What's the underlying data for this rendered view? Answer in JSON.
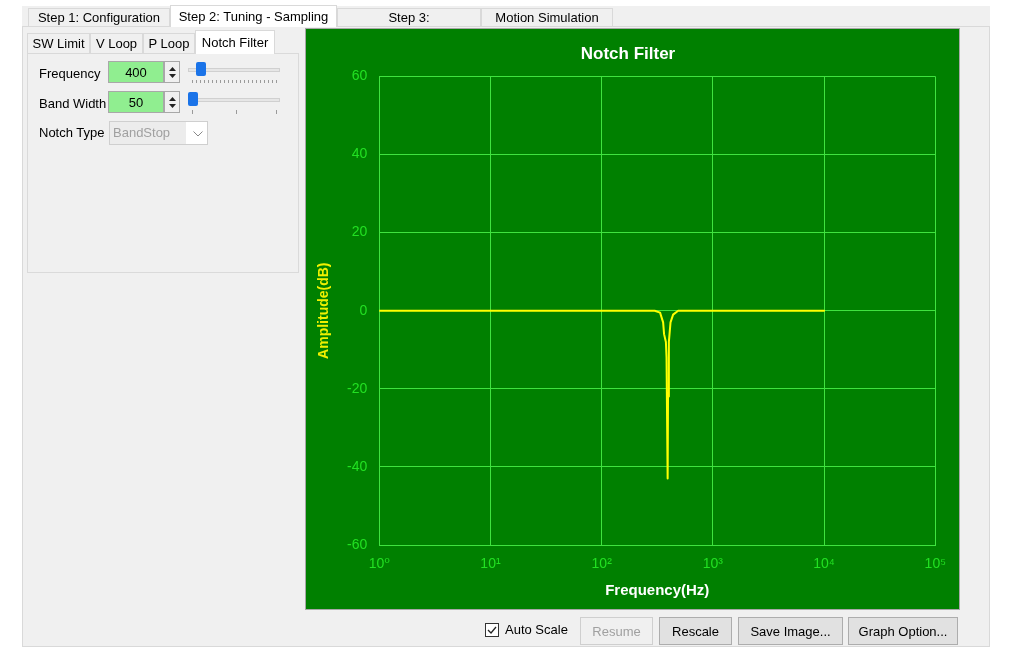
{
  "chart_data": {
    "type": "line",
    "title": "Notch Filter",
    "xlabel": "Frequency(Hz)",
    "ylabel": "Amplitude(dB)",
    "x": [
      1,
      300,
      335,
      357,
      364,
      378,
      383,
      392,
      395,
      402,
      416,
      439,
      487,
      10000
    ],
    "values": [
      0,
      0,
      -0.5,
      -3,
      -6,
      -8,
      -12,
      -43,
      -22,
      -8,
      -3,
      -1,
      0,
      0
    ],
    "color": "#ffff00",
    "marker": "none",
    "log": "x",
    "grid": true,
    "xlim": [
      1,
      100000
    ],
    "ylim": [
      -60,
      60
    ],
    "xticks": [
      {
        "value": 1,
        "label": "10⁰"
      },
      {
        "value": 10,
        "label": "10¹"
      },
      {
        "value": 100,
        "label": "10²"
      },
      {
        "value": 1000,
        "label": "10³"
      },
      {
        "value": 10000,
        "label": "10⁴"
      },
      {
        "value": 100000,
        "label": "10⁵"
      }
    ],
    "yticks": [
      -60,
      -40,
      -20,
      0,
      20,
      40,
      60
    ],
    "annotations": [
      "Step 1: Configuration",
      "Step 2: Tuning - Sampling",
      "Step 3:",
      "Motion Simulation",
      "SW Limit",
      "V Loop",
      "P Loop",
      "Notch Filter",
      "Frequency",
      "400",
      "Band Width",
      "50",
      "Notch Type",
      "BandStop",
      "Auto Scale",
      "Resume",
      "Rescale",
      "Save Image...",
      "Graph Option..."
    ]
  }
}
